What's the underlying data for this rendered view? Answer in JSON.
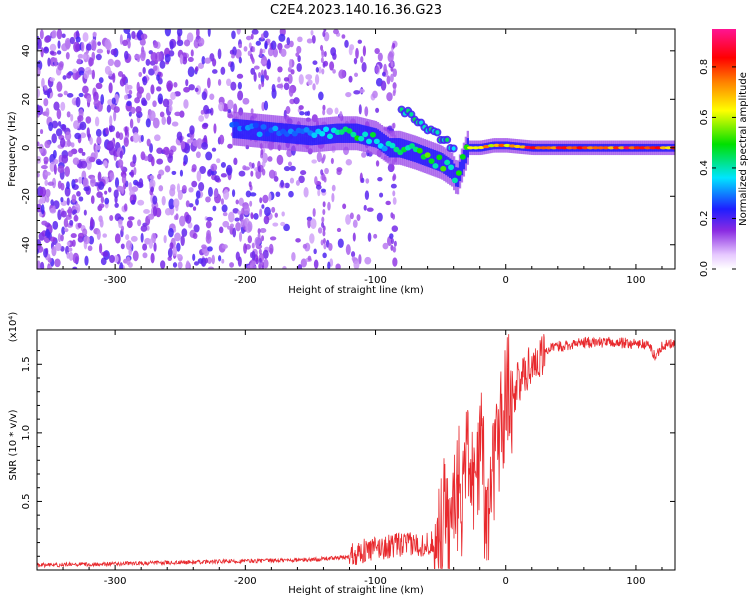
{
  "title": "C2E4.2023.140.16.36.G23",
  "colors": {
    "snr_line": "#e8292d",
    "frame": "#000000",
    "background": "#ffffff"
  },
  "chart_data": [
    {
      "type": "heatmap",
      "xlabel": "Height of straight line (km)",
      "ylabel": "Frequency (Hz)",
      "xlim": [
        -360,
        130
      ],
      "ylim": [
        -50,
        49
      ],
      "xticks": [
        -300,
        -200,
        -100,
        0,
        100
      ],
      "yticks": [
        -40,
        -20,
        0,
        20,
        40
      ],
      "colorbar": {
        "label": "Normalized spectral amplitude",
        "range": [
          0,
          0.95
        ],
        "ticks": [
          0.0,
          0.2,
          0.4,
          0.6,
          0.8
        ],
        "colormap": "rainbow (white-purple-blue-cyan-green-yellow-red-magenta)"
      },
      "features": {
        "noise_region_x": [
          -360,
          -85
        ],
        "signal_curve": {
          "x": [
            -210,
            -190,
            -170,
            -150,
            -130,
            -115,
            -100,
            -90,
            -82,
            -70,
            -60,
            -50,
            -42,
            -38,
            -30,
            -20,
            -10,
            0,
            20,
            60,
            100,
            130
          ],
          "y": [
            8,
            7,
            6,
            5,
            6,
            6,
            4,
            0,
            0,
            -2,
            -4,
            -6,
            -9,
            -13,
            0,
            0,
            1,
            1,
            0,
            0,
            0,
            0
          ],
          "amplitude": [
            0.3,
            0.35,
            0.35,
            0.4,
            0.45,
            0.5,
            0.5,
            0.4,
            0.5,
            0.5,
            0.55,
            0.55,
            0.5,
            0.45,
            0.7,
            0.75,
            0.8,
            0.85,
            0.9,
            0.9,
            0.9,
            0.85
          ]
        },
        "upper_branch": {
          "x": [
            -80,
            -70,
            -60,
            -50,
            -40
          ],
          "y": [
            16,
            12,
            8,
            4,
            0
          ]
        }
      }
    },
    {
      "type": "line",
      "xlabel": "Height of straight line (km)",
      "ylabel": "SNR (10 * v/v)",
      "y_multiplier": "(x10⁴)",
      "xlim": [
        -360,
        130
      ],
      "ylim": [
        0,
        1.75
      ],
      "xticks": [
        -300,
        -200,
        -100,
        0,
        100
      ],
      "yticks": [
        0.5,
        1.0,
        1.5
      ],
      "ytick_labels": [
        "0.5",
        "1.0",
        "1.5"
      ],
      "series": [
        {
          "x": [
            -360,
            -300,
            -250,
            -200,
            -150,
            -120,
            -100,
            -80,
            -60,
            -50,
            -45,
            -40,
            -35,
            -30,
            -25,
            -20,
            -15,
            -10,
            -5,
            0,
            5,
            10,
            15,
            20,
            25,
            30,
            40,
            60,
            80,
            100,
            110,
            115,
            120,
            130
          ],
          "y": [
            0.02,
            0.03,
            0.04,
            0.05,
            0.06,
            0.08,
            0.12,
            0.15,
            0.15,
            0.2,
            0.4,
            0.6,
            0.5,
            0.9,
            0.6,
            1.0,
            0.4,
            0.8,
            1.1,
            1.2,
            1.3,
            1.35,
            1.45,
            1.5,
            1.55,
            1.6,
            1.63,
            1.66,
            1.66,
            1.65,
            1.64,
            1.55,
            1.64,
            1.65
          ]
        }
      ]
    }
  ]
}
